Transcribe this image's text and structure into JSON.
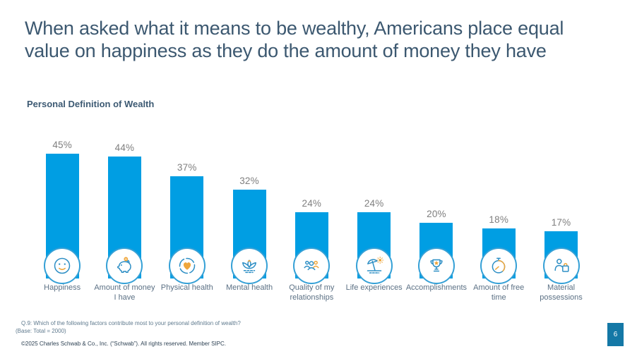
{
  "slide": {
    "title": "When asked what it means to be wealthy, Americans place equal value on happiness as they do the amount of money they have",
    "page_number": "6",
    "page_badge_color": "#1478a6"
  },
  "chart_data": {
    "type": "bar",
    "title": "Personal Definition of Wealth",
    "categories": [
      "Happiness",
      "Amount of money I have",
      "Physical health",
      "Mental health",
      "Quality of my relationships",
      "Life experiences",
      "Accomplishments",
      "Amount of free time",
      "Material possessions"
    ],
    "values": [
      45,
      44,
      37,
      32,
      24,
      24,
      20,
      18,
      17
    ],
    "value_labels": [
      "45%",
      "44%",
      "37%",
      "32%",
      "24%",
      "24%",
      "20%",
      "18%",
      "17%"
    ],
    "icons": [
      "smiley-face-icon",
      "piggy-bank-icon",
      "heart-icon",
      "lotus-icon",
      "people-group-icon",
      "beach-umbrella-icon",
      "trophy-icon",
      "stopwatch-icon",
      "shopping-bag-icon"
    ],
    "bar_color": "#009ee3",
    "icon_stroke_color": "#2e8fc5",
    "icon_accent_color": "#efa63b",
    "ylim": [
      0,
      50
    ],
    "grid": false,
    "legend": false,
    "value_label_position": "above-bar"
  },
  "footnotes": {
    "question": "Q.9:  Which of the following factors contribute most to your personal definition of wealth?",
    "base": "(Base: Total = 2000)",
    "copyright": "©2025 Charles Schwab & Co., Inc. (“Schwab”). All rights reserved. Member SIPC."
  }
}
